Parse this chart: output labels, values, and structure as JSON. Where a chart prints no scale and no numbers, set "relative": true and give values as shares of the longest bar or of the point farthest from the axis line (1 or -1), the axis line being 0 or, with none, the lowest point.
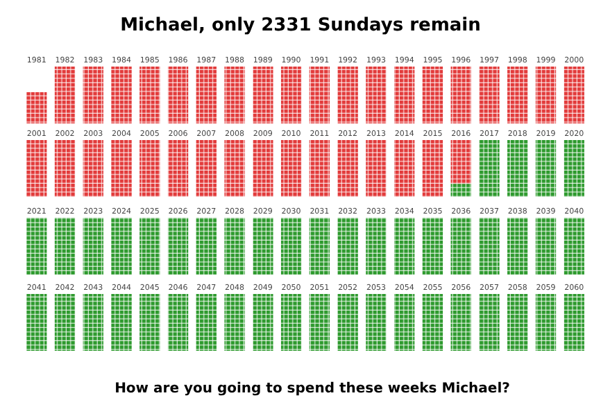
{
  "chart_data": [
    {
      "type": "bar",
      "title": "Michael, only 2331 Sundays remain",
      "relative": true,
      "stacked": true,
      "categories": [
        "1981",
        "1982",
        "1983",
        "1984",
        "1985",
        "1986",
        "1987",
        "1988",
        "1989",
        "1990",
        "1991",
        "1992",
        "1993",
        "1994",
        "1995",
        "1996",
        "1997",
        "1998",
        "1999",
        "2000"
      ],
      "series": [
        {
          "color": "#2e9a2e",
          "values": [
            0,
            0,
            0,
            0,
            0,
            0,
            0,
            0,
            0,
            0,
            0,
            0,
            0,
            0,
            0,
            0,
            0,
            0,
            0,
            0
          ]
        },
        {
          "color": "#e23b3b",
          "values": [
            0.55,
            1,
            1,
            1,
            1,
            1,
            1,
            1,
            1,
            1,
            1,
            1,
            1,
            1,
            1,
            1,
            1,
            1,
            1,
            1
          ]
        }
      ]
    },
    {
      "type": "bar",
      "relative": true,
      "stacked": true,
      "categories": [
        "2001",
        "2002",
        "2003",
        "2004",
        "2005",
        "2006",
        "2007",
        "2008",
        "2009",
        "2010",
        "2011",
        "2012",
        "2013",
        "2014",
        "2015",
        "2016",
        "2017",
        "2018",
        "2019",
        "2020"
      ],
      "series": [
        {
          "color": "#2e9a2e",
          "values": [
            0,
            0,
            0,
            0,
            0,
            0,
            0,
            0,
            0,
            0,
            0,
            0,
            0,
            0,
            0,
            0.23,
            1,
            1,
            1,
            1
          ]
        },
        {
          "color": "#e23b3b",
          "values": [
            1,
            1,
            1,
            1,
            1,
            1,
            1,
            1,
            1,
            1,
            1,
            1,
            1,
            1,
            1,
            0.77,
            0,
            0,
            0,
            0
          ]
        }
      ]
    },
    {
      "type": "bar",
      "relative": true,
      "stacked": true,
      "categories": [
        "2021",
        "2022",
        "2023",
        "2024",
        "2025",
        "2026",
        "2027",
        "2028",
        "2029",
        "2030",
        "2031",
        "2032",
        "2033",
        "2034",
        "2035",
        "2036",
        "2037",
        "2038",
        "2039",
        "2040"
      ],
      "series": [
        {
          "color": "#2e9a2e",
          "values": [
            1,
            1,
            1,
            1,
            1,
            1,
            1,
            1,
            1,
            1,
            1,
            1,
            1,
            1,
            1,
            1,
            1,
            1,
            1,
            1
          ]
        },
        {
          "color": "#e23b3b",
          "values": [
            0,
            0,
            0,
            0,
            0,
            0,
            0,
            0,
            0,
            0,
            0,
            0,
            0,
            0,
            0,
            0,
            0,
            0,
            0,
            0
          ]
        }
      ]
    },
    {
      "type": "bar",
      "relative": true,
      "stacked": true,
      "categories": [
        "2041",
        "2042",
        "2043",
        "2044",
        "2045",
        "2046",
        "2047",
        "2048",
        "2049",
        "2050",
        "2051",
        "2052",
        "2053",
        "2054",
        "2055",
        "2056",
        "2057",
        "2058",
        "2059",
        "2060"
      ],
      "series": [
        {
          "color": "#2e9a2e",
          "values": [
            1,
            1,
            1,
            1,
            1,
            1,
            1,
            1,
            1,
            1,
            1,
            1,
            1,
            1,
            1,
            1,
            1,
            1,
            1,
            1
          ]
        },
        {
          "color": "#e23b3b",
          "values": [
            0,
            0,
            0,
            0,
            0,
            0,
            0,
            0,
            0,
            0,
            0,
            0,
            0,
            0,
            0,
            0,
            0,
            0,
            0,
            0
          ]
        }
      ],
      "annotations": [
        "How are you going to spend these weeks Michael?"
      ]
    }
  ]
}
